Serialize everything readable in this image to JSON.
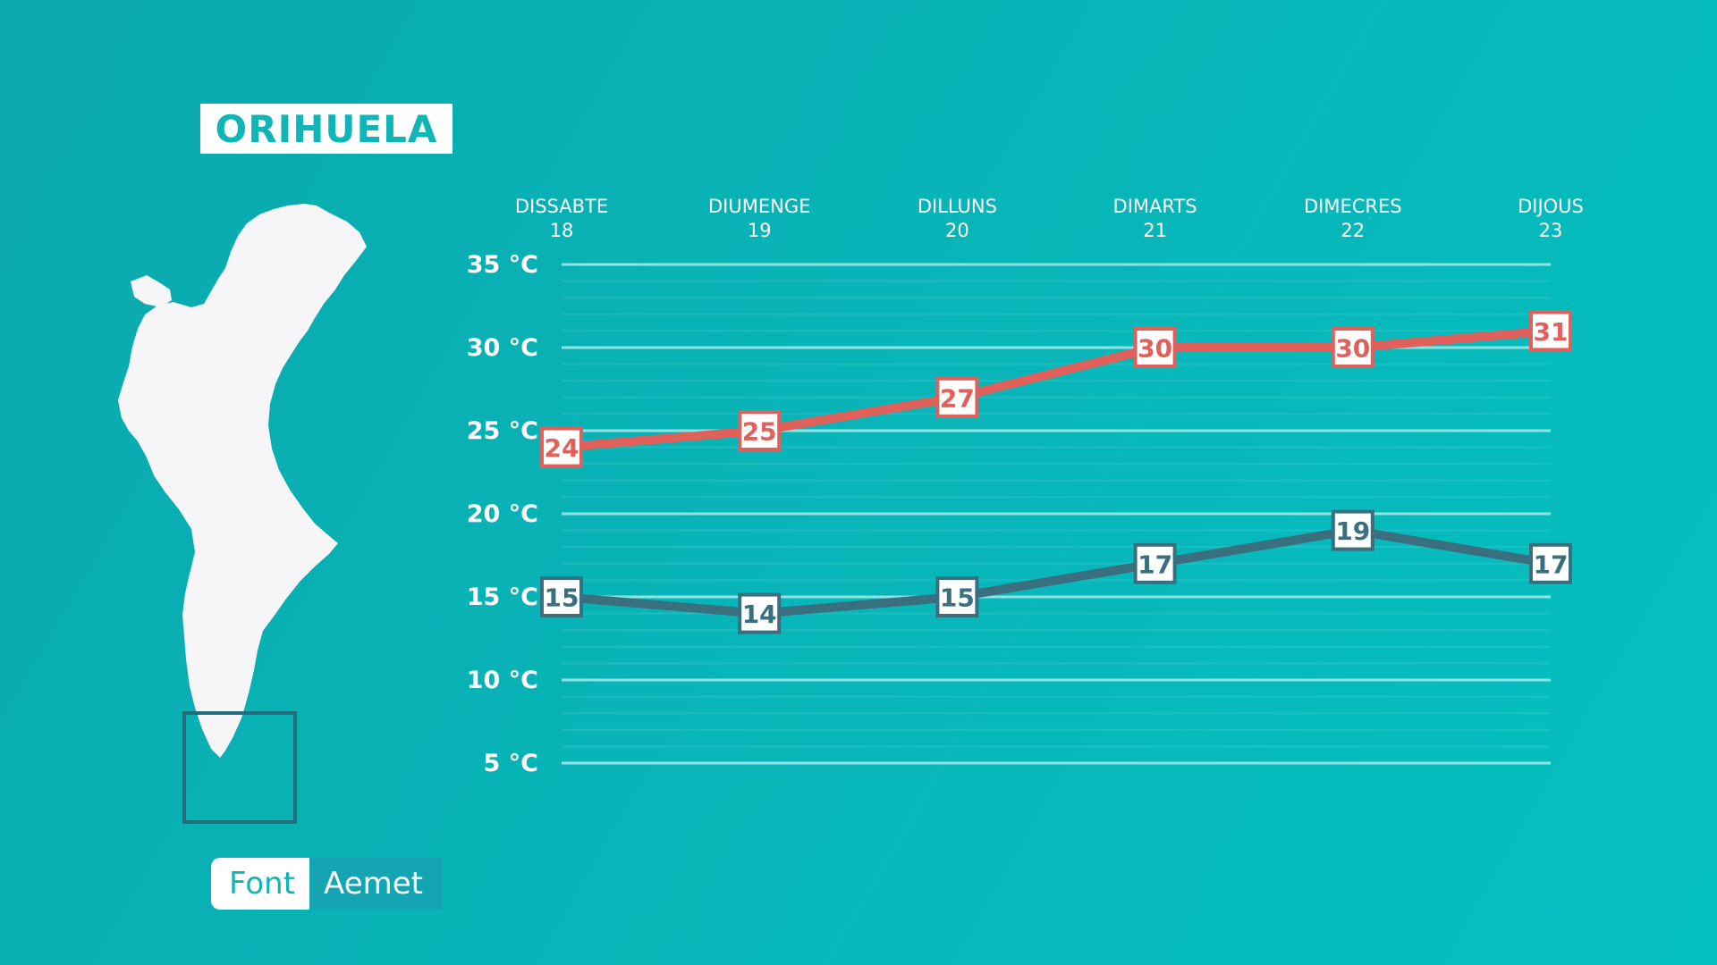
{
  "header": {
    "location": "ORIHUELA"
  },
  "source": {
    "label": "Font",
    "value": "Aemet"
  },
  "colors": {
    "background": "#08b5b8",
    "max_series": "#e0605c",
    "min_series": "#3a6f80",
    "gridline": "#8fe3e3",
    "map": "#f6f5f8"
  },
  "chart_data": {
    "type": "line",
    "categories": [
      {
        "day": "DISSABTE",
        "date": "18"
      },
      {
        "day": "DIUMENGE",
        "date": "19"
      },
      {
        "day": "DILLUNS",
        "date": "20"
      },
      {
        "day": "DIMARTS",
        "date": "21"
      },
      {
        "day": "DIMECRES",
        "date": "22"
      },
      {
        "day": "DIJOUS",
        "date": "23"
      }
    ],
    "series": [
      {
        "role": "max",
        "values": [
          24,
          25,
          27,
          30,
          30,
          31
        ],
        "color": "#e0605c"
      },
      {
        "role": "min",
        "values": [
          15,
          14,
          15,
          17,
          19,
          17
        ],
        "color": "#3a6f80"
      }
    ],
    "yticks": [
      "35 °C",
      "30 °C",
      "25 °C",
      "20 °C",
      "15 °C",
      "10 °C",
      "5 °C"
    ],
    "ytick_values": [
      35,
      30,
      25,
      20,
      15,
      10,
      5
    ],
    "ylim": [
      5,
      35
    ],
    "grid": true,
    "legend": "none"
  }
}
